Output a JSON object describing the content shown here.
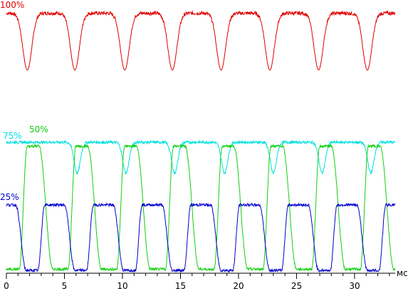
{
  "chart_data": {
    "type": "line",
    "xlabel": "мс",
    "ylabel": "",
    "xlim": [
      0,
      33.5
    ],
    "x_ticks": [
      0,
      5,
      10,
      15,
      20,
      25,
      30
    ],
    "grid": false,
    "legend": "inline labels at left",
    "period_ms": 4.2,
    "series": [
      {
        "name": "100%",
        "color": "#e00000",
        "level_high": 0.97,
        "level_low": 0.03,
        "dip_centers_ms": [
          1.8,
          5.9,
          10.2,
          14.3,
          18.5,
          22.7,
          26.9,
          31.1
        ]
      },
      {
        "name": "75%",
        "color": "#00e0e0",
        "level_high": 0.95,
        "level_low": 0.7,
        "dip_centers_ms": [
          6.1,
          10.3,
          14.5,
          18.8,
          23.0,
          27.2,
          31.4
        ]
      },
      {
        "name": "50%",
        "color": "#10d010",
        "level_high": 0.95,
        "level_low": 0.03,
        "rise_ms": [
          1.1,
          5.3,
          9.5,
          13.7,
          17.9,
          22.1,
          26.3,
          30.5
        ],
        "fall_ms": [
          2.8,
          7.0,
          11.2,
          15.4,
          19.6,
          23.8,
          28.0,
          32.2
        ]
      },
      {
        "name": "25%",
        "color": "#0000d0",
        "level_high": 0.96,
        "level_low": 0.04,
        "rise_ms": [
          2.7,
          6.9,
          11.1,
          15.3,
          19.5,
          23.7,
          27.9,
          32.1
        ],
        "fall_ms": [
          0.8,
          5.0,
          9.2,
          13.4,
          17.6,
          21.8,
          26.0,
          30.2
        ]
      }
    ]
  }
}
